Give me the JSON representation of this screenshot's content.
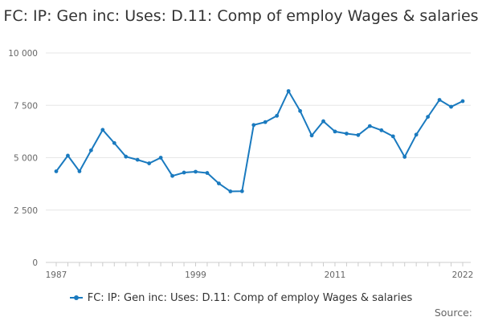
{
  "chart_data": {
    "type": "line",
    "title": "FC: IP: Gen inc: Uses: D.11: Comp of employ Wages & salaries",
    "xlabel": "",
    "ylabel": "",
    "x": [
      1987,
      1988,
      1989,
      1990,
      1991,
      1992,
      1993,
      1994,
      1995,
      1996,
      1997,
      1998,
      1999,
      2000,
      2001,
      2002,
      2003,
      2004,
      2005,
      2006,
      2007,
      2008,
      2009,
      2010,
      2011,
      2012,
      2013,
      2014,
      2015,
      2016,
      2017,
      2018,
      2019,
      2020,
      2021,
      2022
    ],
    "series": [
      {
        "name": "FC: IP: Gen inc: Uses: D.11: Comp of employ Wages & salaries",
        "values": [
          4350,
          5100,
          4350,
          5350,
          6330,
          5700,
          5050,
          4900,
          4730,
          5000,
          4130,
          4290,
          4330,
          4270,
          3770,
          3390,
          3400,
          6560,
          6700,
          7000,
          8180,
          7230,
          6060,
          6740,
          6250,
          6150,
          6080,
          6510,
          6310,
          6020,
          5040,
          6100,
          6950,
          7760,
          7430,
          7700
        ]
      }
    ],
    "ylim": [
      0,
      10000
    ],
    "xlim": [
      1987,
      2022
    ],
    "y_ticks": [
      0,
      2500,
      5000,
      7500,
      10000
    ],
    "y_tick_labels": [
      "0",
      "2 500",
      "5 000",
      "7 500",
      "10 000"
    ],
    "x_tick_labels": [
      "1987",
      "1999",
      "2011",
      "2022"
    ],
    "legend_position": "bottom",
    "grid": true
  },
  "legend": {
    "label": "FC: IP: Gen inc: Uses: D.11: Comp of employ Wages & salaries"
  },
  "footer": {
    "source_label": "Source:"
  },
  "colors": {
    "series": "#1a7abf",
    "grid": "#e6e6e6",
    "axis": "#cccccc"
  }
}
